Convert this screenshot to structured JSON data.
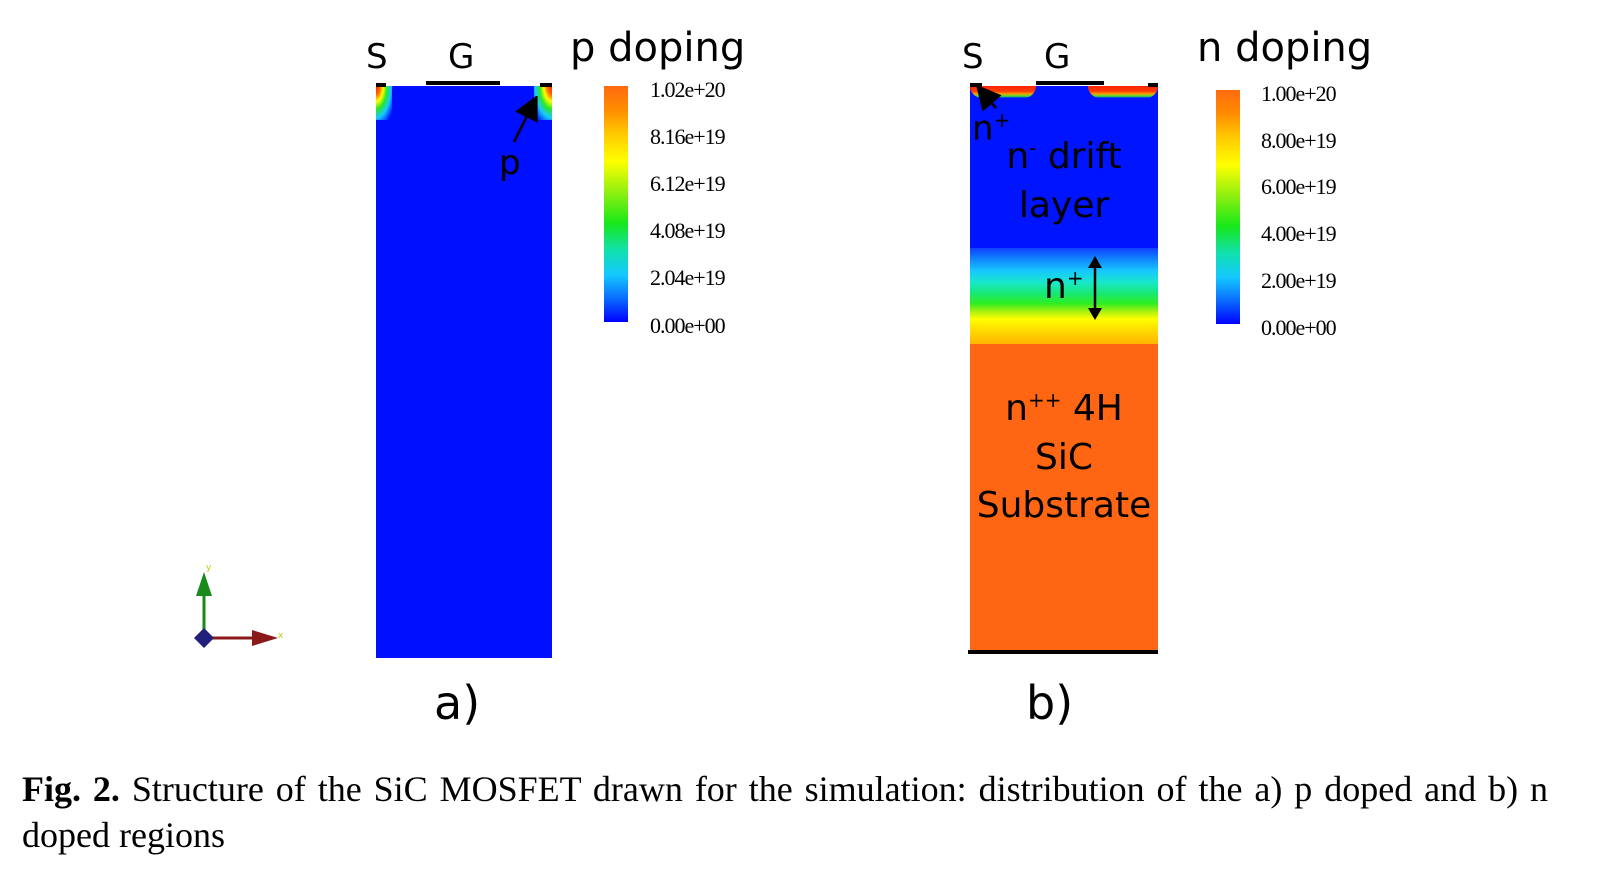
{
  "panel_a": {
    "source_label": "S",
    "gate_label": "G",
    "colorbar_title": "p doping",
    "colorbar_ticks": [
      "1.02e+20",
      "8.16e+19",
      "6.12e+19",
      "4.08e+19",
      "2.04e+19",
      "0.00e+00"
    ],
    "region_label": "p",
    "panel_label": "a)",
    "axis_labels": {
      "y": "y",
      "x": "x"
    }
  },
  "panel_b": {
    "source_label": "S",
    "gate_label": "G",
    "colorbar_title": "n doping",
    "colorbar_ticks": [
      "1.00e+20",
      "8.00e+19",
      "6.00e+19",
      "4.00e+19",
      "2.00e+19",
      "0.00e+00"
    ],
    "nplus_top_base": "n",
    "nplus_top_sup": "+",
    "drift_base": "n",
    "drift_sup": "-",
    "drift_line1_rest": " drift",
    "drift_line2": "layer",
    "nplus_mid_base": "n",
    "nplus_mid_sup": "+",
    "substrate_base": "n",
    "substrate_sup": "++",
    "substrate_line1_rest": " 4H",
    "substrate_line2": "SiC",
    "substrate_line3": "Substrate",
    "panel_label": "b)"
  },
  "caption": {
    "fig_label": "Fig. 2.",
    "text": " Structure of the SiC MOSFET drawn for the simulation: distribution of the a) p doped and b) n doped regions"
  }
}
